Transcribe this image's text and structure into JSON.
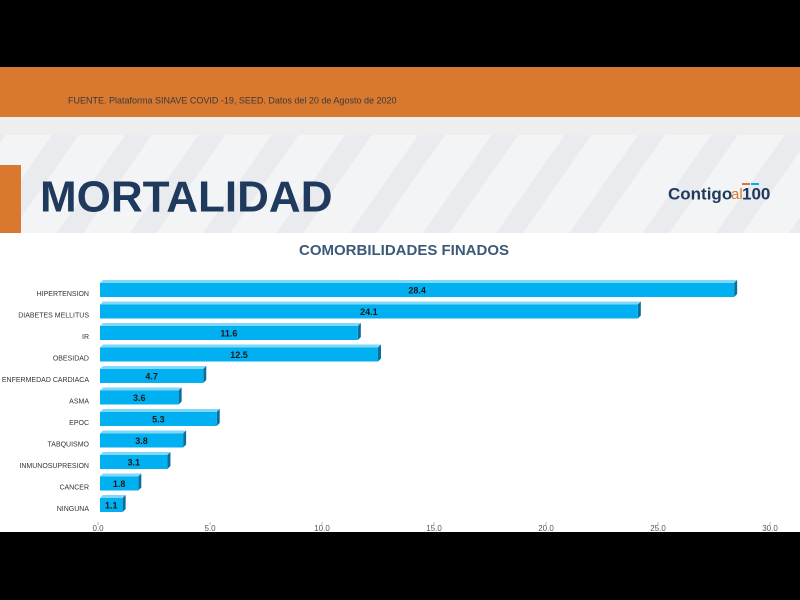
{
  "header": {
    "source": "FUENTE. Plataforma SINAVE COVID -19, SEED. Datos del 20 de Agosto de 2020",
    "title": "MORTALIDAD",
    "logo": {
      "part1": "Contigo",
      "part2": "al",
      "part3": "100"
    }
  },
  "chart_data": {
    "type": "bar",
    "orientation": "horizontal",
    "title": "COMORBILIDADES FINADOS",
    "categories": [
      "HIPERTENSION",
      "DIABETES MELLITUS",
      "IR",
      "OBESIDAD",
      "ENFERMEDAD CARDIACA",
      "ASMA",
      "EPOC",
      "TABQUISMO",
      "INMUNOSUPRESION",
      "CANCER",
      "NINGUNA"
    ],
    "values": [
      28.4,
      24.1,
      11.6,
      12.5,
      4.7,
      3.6,
      5.3,
      3.8,
      3.1,
      1.8,
      1.1
    ],
    "color": "#00b0f0",
    "xlim": [
      0,
      30
    ],
    "xticks": [
      {
        "value": 0,
        "label": "0.0"
      },
      {
        "value": 5,
        "label": "5.0"
      },
      {
        "value": 10,
        "label": "10.0"
      },
      {
        "value": 15,
        "label": "15.0"
      },
      {
        "value": 20,
        "label": "20.0"
      },
      {
        "value": 25,
        "label": "25.0"
      },
      {
        "value": 30,
        "label": "30.0"
      }
    ],
    "grid": false
  }
}
